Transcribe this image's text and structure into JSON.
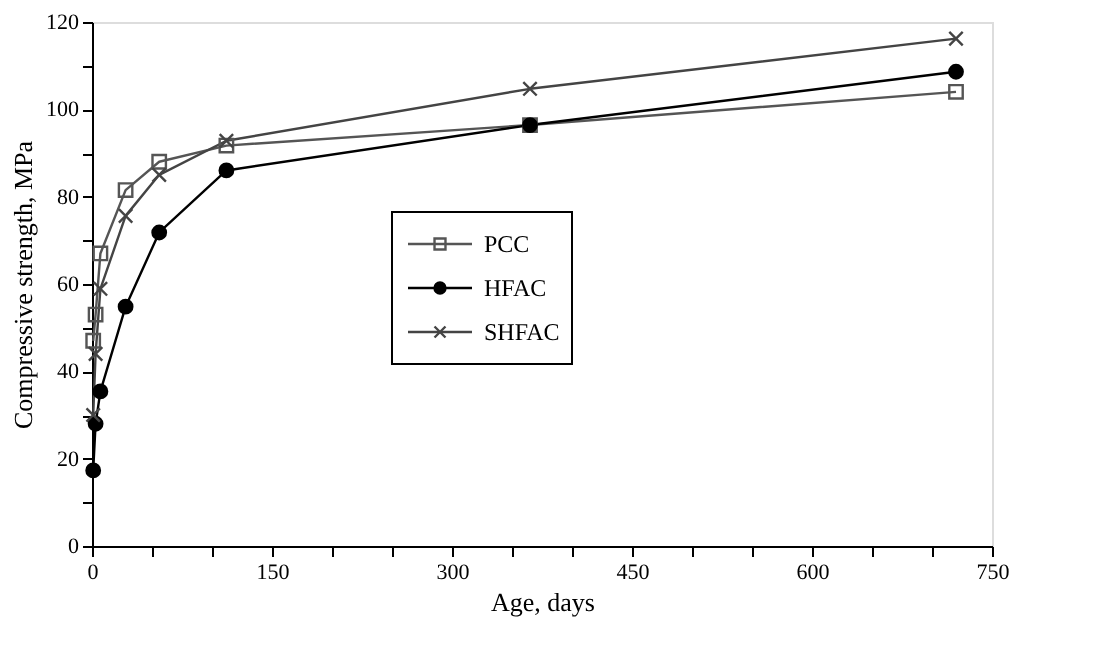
{
  "chart_data": {
    "type": "line",
    "xlabel": "Age, days",
    "ylabel": "Compressive strength, MPa",
    "x": [
      1,
      3,
      7,
      28,
      56,
      112,
      365,
      720
    ],
    "series": [
      {
        "name": "PCC",
        "color": "#555555",
        "marker": "square",
        "values": [
          47,
          53,
          67,
          81.5,
          88,
          91.7,
          96.4,
          104
        ]
      },
      {
        "name": "HFAC",
        "color": "#000000",
        "marker": "circle",
        "values": [
          17.3,
          28,
          35.4,
          54.8,
          71.8,
          86,
          96.4,
          108.6
        ]
      },
      {
        "name": "SHFAC",
        "color": "#444444",
        "marker": "cross",
        "values": [
          30,
          44,
          58.9,
          75.6,
          85,
          92.8,
          104.7,
          116.2
        ]
      }
    ],
    "xlim": [
      0,
      750
    ],
    "xticks": [
      0,
      {
        "value": 50,
        "label": null
      },
      {
        "value": 100,
        "label": null
      },
      150,
      {
        "value": 200,
        "label": null
      },
      {
        "value": 250,
        "label": null
      },
      300,
      {
        "value": 350,
        "label": null
      },
      {
        "value": 400,
        "label": null
      },
      450,
      {
        "value": 500,
        "label": null
      },
      {
        "value": 550,
        "label": null
      },
      600,
      {
        "value": 650,
        "label": null
      },
      {
        "value": 700,
        "label": null
      },
      750
    ],
    "ylim": [
      0,
      120
    ],
    "yticks": [
      0,
      {
        "value": 10,
        "label": null
      },
      20,
      {
        "value": 30,
        "label": null
      },
      40,
      {
        "value": 50,
        "label": null
      },
      60,
      {
        "value": 70,
        "label": null
      },
      80,
      {
        "value": 90,
        "label": null
      },
      100,
      {
        "value": 110,
        "label": null
      },
      120
    ],
    "grid": false,
    "legend": "center"
  }
}
